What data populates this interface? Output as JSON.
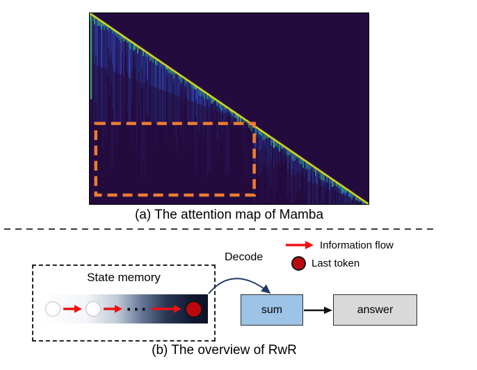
{
  "figure": {
    "caption_a": "(a) The attention map of Mamba",
    "caption_b": "(b) The overview of RwR"
  },
  "legend": {
    "information_flow_label": "Information flow",
    "last_token_label": "Last token"
  },
  "overview": {
    "state_memory_label": "State memory",
    "decode_label": "Decode",
    "ellipsis": "···",
    "sum_label": "sum",
    "answer_label": "answer"
  },
  "colors": {
    "arrow_red": "#ee1212",
    "arrow_black": "#111111",
    "decode_arrow_navy": "#1f3864",
    "sum_fill": "#9dc3e6",
    "answer_fill": "#d9d9d9",
    "last_token_red": "#bb0a0f",
    "highlight_orange": "#ed7d31",
    "heatmap_background": "#240b3e"
  },
  "chart_data": {
    "type": "heatmap",
    "title": "The attention map of Mamba",
    "description": "Lower-triangular attention map: bright yellow-green main diagonal from top-left to bottom-right, blue vertical streaks fading with distance below the diagonal, dark purple masked upper triangle; an orange dashed box highlights the lower-left region where attention to early tokens has decayed to near zero.",
    "background": "#240b3e",
    "diagonal_color": "#e8e419",
    "streak_colors": [
      "#283593",
      "#2b4bb3",
      "#1e3a8a",
      "#3451c6",
      "#24308f"
    ],
    "near_diagonal_colors": [
      "#1fa187",
      "#2a788e",
      "#49c16d"
    ],
    "highlight_box": {
      "x0": 0.022,
      "y0": 0.578,
      "x1": 0.59,
      "y1": 0.953,
      "color": "#ed7d31",
      "style": "dashed"
    }
  }
}
